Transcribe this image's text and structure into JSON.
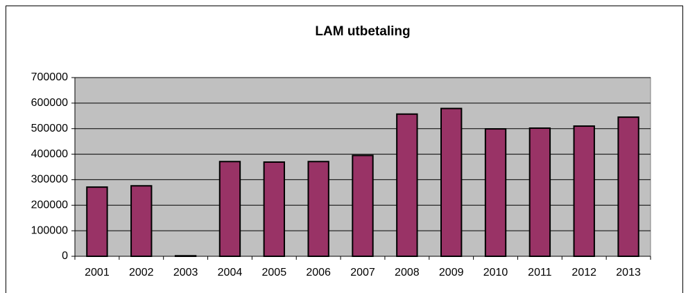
{
  "chart_data": {
    "type": "bar",
    "title": "LAM utbetaling",
    "categories": [
      "2001",
      "2002",
      "2003",
      "2004",
      "2005",
      "2006",
      "2007",
      "2008",
      "2009",
      "2010",
      "2011",
      "2012",
      "2013"
    ],
    "values": [
      271000,
      276000,
      2000,
      371000,
      369000,
      371000,
      395000,
      557000,
      579000,
      499000,
      502000,
      510000,
      545000
    ],
    "color": "#993366",
    "ylim": [
      0,
      700000
    ],
    "yticks": [
      0,
      100000,
      200000,
      300000,
      400000,
      500000,
      600000,
      700000
    ],
    "grid": true
  }
}
